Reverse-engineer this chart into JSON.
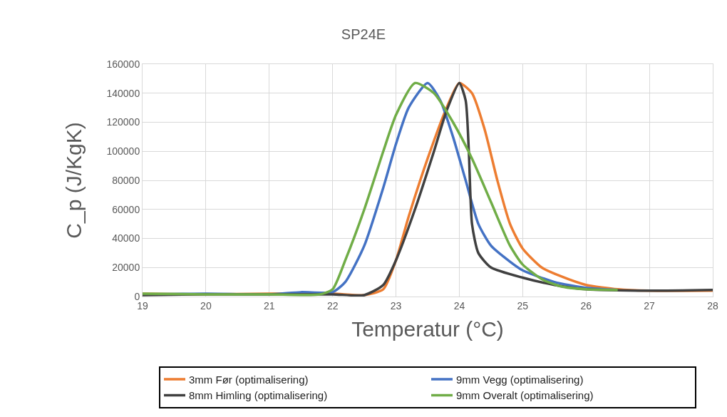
{
  "chart_data": {
    "type": "line",
    "title": "SP24E",
    "xlabel": "Temperatur (°C)",
    "ylabel": "C_p (J/KgK)",
    "xlim": [
      19,
      28
    ],
    "xticks": [
      19,
      20,
      21,
      22,
      23,
      24,
      25,
      26,
      27,
      28
    ],
    "ylim": [
      0,
      160000
    ],
    "yticks": [
      0,
      20000,
      40000,
      60000,
      80000,
      100000,
      120000,
      140000,
      160000
    ],
    "grid": true,
    "legend": "bottom",
    "marker": "none",
    "line_style": "solid",
    "series": [
      {
        "name": "3mm Før (optimalisering)",
        "color": "#ed7d31",
        "x": [
          19,
          20,
          21,
          22,
          22.5,
          22.8,
          23.0,
          23.2,
          23.5,
          23.8,
          24.0,
          24.2,
          24.4,
          24.6,
          24.8,
          25.0,
          25.3,
          25.6,
          26.0,
          26.5,
          27,
          28
        ],
        "values": [
          2000,
          1500,
          2000,
          2000,
          1000,
          5000,
          25000,
          55000,
          95000,
          130000,
          147000,
          140000,
          115000,
          80000,
          50000,
          33000,
          20000,
          14000,
          8000,
          5000,
          4000,
          4000
        ]
      },
      {
        "name": "9mm Vegg (optimalisering)",
        "color": "#4472c4",
        "x": [
          19,
          20,
          21,
          21.5,
          22,
          22.2,
          22.5,
          22.8,
          23.0,
          23.2,
          23.5,
          23.7,
          23.9,
          24.1,
          24.3,
          24.5,
          24.8,
          25.0,
          25.5,
          26.0,
          26.5
        ],
        "values": [
          1500,
          2000,
          1500,
          3000,
          3000,
          10000,
          35000,
          75000,
          105000,
          130000,
          147000,
          135000,
          110000,
          80000,
          50000,
          35000,
          24000,
          18000,
          10000,
          6000,
          4500
        ]
      },
      {
        "name": "8mm Himling (optimalisering)",
        "color": "#404040",
        "x": [
          19,
          20,
          21,
          22,
          22.5,
          22.8,
          23.0,
          23.3,
          23.6,
          23.8,
          24.0,
          24.1,
          24.15,
          24.2,
          24.3,
          24.5,
          25.0,
          25.5,
          26.0,
          27,
          28
        ],
        "values": [
          1000,
          1500,
          1500,
          1500,
          1000,
          8000,
          25000,
          60000,
          100000,
          128000,
          147000,
          135000,
          100000,
          50000,
          30000,
          20000,
          13000,
          8000,
          5000,
          4000,
          4500
        ]
      },
      {
        "name": "9mm Overalt (optimalisering)",
        "color": "#70ad47",
        "x": [
          19,
          20,
          21,
          21.8,
          22.0,
          22.2,
          22.5,
          22.8,
          23.0,
          23.3,
          23.6,
          23.9,
          24.2,
          24.5,
          24.8,
          25.0,
          25.3,
          25.6,
          26.0,
          26.5
        ],
        "values": [
          2000,
          1500,
          1500,
          1500,
          5000,
          25000,
          60000,
          100000,
          125000,
          147000,
          140000,
          120000,
          95000,
          65000,
          35000,
          22000,
          12000,
          7000,
          5000,
          4500
        ]
      }
    ]
  }
}
